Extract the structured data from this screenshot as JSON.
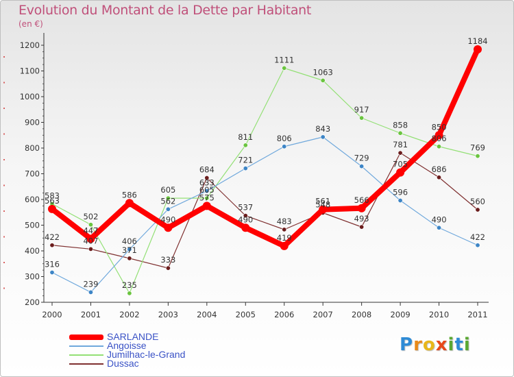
{
  "title": "Evolution du Montant de la Dette par Habitant",
  "subtitle": "(en €)",
  "logo": {
    "letters": [
      "P",
      "r",
      "o",
      "x",
      "i",
      "t",
      "i"
    ],
    "colors": [
      "#2e8bd6",
      "#e88a1a",
      "#e8b71a",
      "#e8481a",
      "#5aa832",
      "#2e8bd6",
      "#5aa832"
    ]
  },
  "chart_data": {
    "type": "line",
    "x": [
      "2000",
      "2001",
      "2002",
      "2003",
      "2004",
      "2005",
      "2006",
      "2007",
      "2008",
      "2009",
      "2010",
      "2011"
    ],
    "yticks": [
      "200",
      "300",
      "400",
      "500",
      "600",
      "700",
      "800",
      "900",
      "1000",
      "1100",
      "1200"
    ],
    "ylim": [
      200,
      1200
    ],
    "grid": false,
    "legend_position": "bottom-left",
    "series": [
      {
        "name": "SARLANDE",
        "color": "#ff0000",
        "markerColor": "#ff0000",
        "width": 8,
        "values": [
          563,
          447,
          586,
          490,
          575,
          490,
          419,
          561,
          566,
          705,
          850,
          1184
        ],
        "labels": [
          "563",
          "447",
          "586",
          "490",
          "575",
          "490",
          "419",
          "561",
          "566",
          "705",
          "850",
          "1184"
        ]
      },
      {
        "name": "Angoisse",
        "color": "#6fa8dc",
        "markerColor": "#3d85c6",
        "width": 1.2,
        "values": [
          316,
          239,
          406,
          562,
          633,
          721,
          806,
          843,
          729,
          596,
          490,
          422
        ],
        "labels": [
          "316",
          "239",
          "406",
          "562",
          "633",
          "721",
          "806",
          "843",
          "729",
          "596",
          "490",
          "422"
        ]
      },
      {
        "name": "Jumilhac-le-Grand",
        "color": "#93e075",
        "markerColor": "#6ac43f",
        "width": 1.2,
        "values": [
          583,
          502,
          235,
          605,
          605,
          811,
          1111,
          1063,
          917,
          858,
          806,
          769
        ],
        "labels": [
          "583",
          "502",
          "235",
          "605",
          "605",
          "811",
          "1111",
          "1063",
          "917",
          "858",
          "806",
          "769"
        ]
      },
      {
        "name": "Dussac",
        "color": "#7f3030",
        "markerColor": "#6b1d1d",
        "width": 1.2,
        "values": [
          422,
          407,
          371,
          333,
          684,
          537,
          483,
          548,
          493,
          781,
          686,
          560
        ],
        "labels": [
          "422",
          "407",
          "371",
          "333",
          "684",
          "537",
          "483",
          "548",
          "493",
          "781",
          "686",
          "560"
        ]
      }
    ]
  }
}
